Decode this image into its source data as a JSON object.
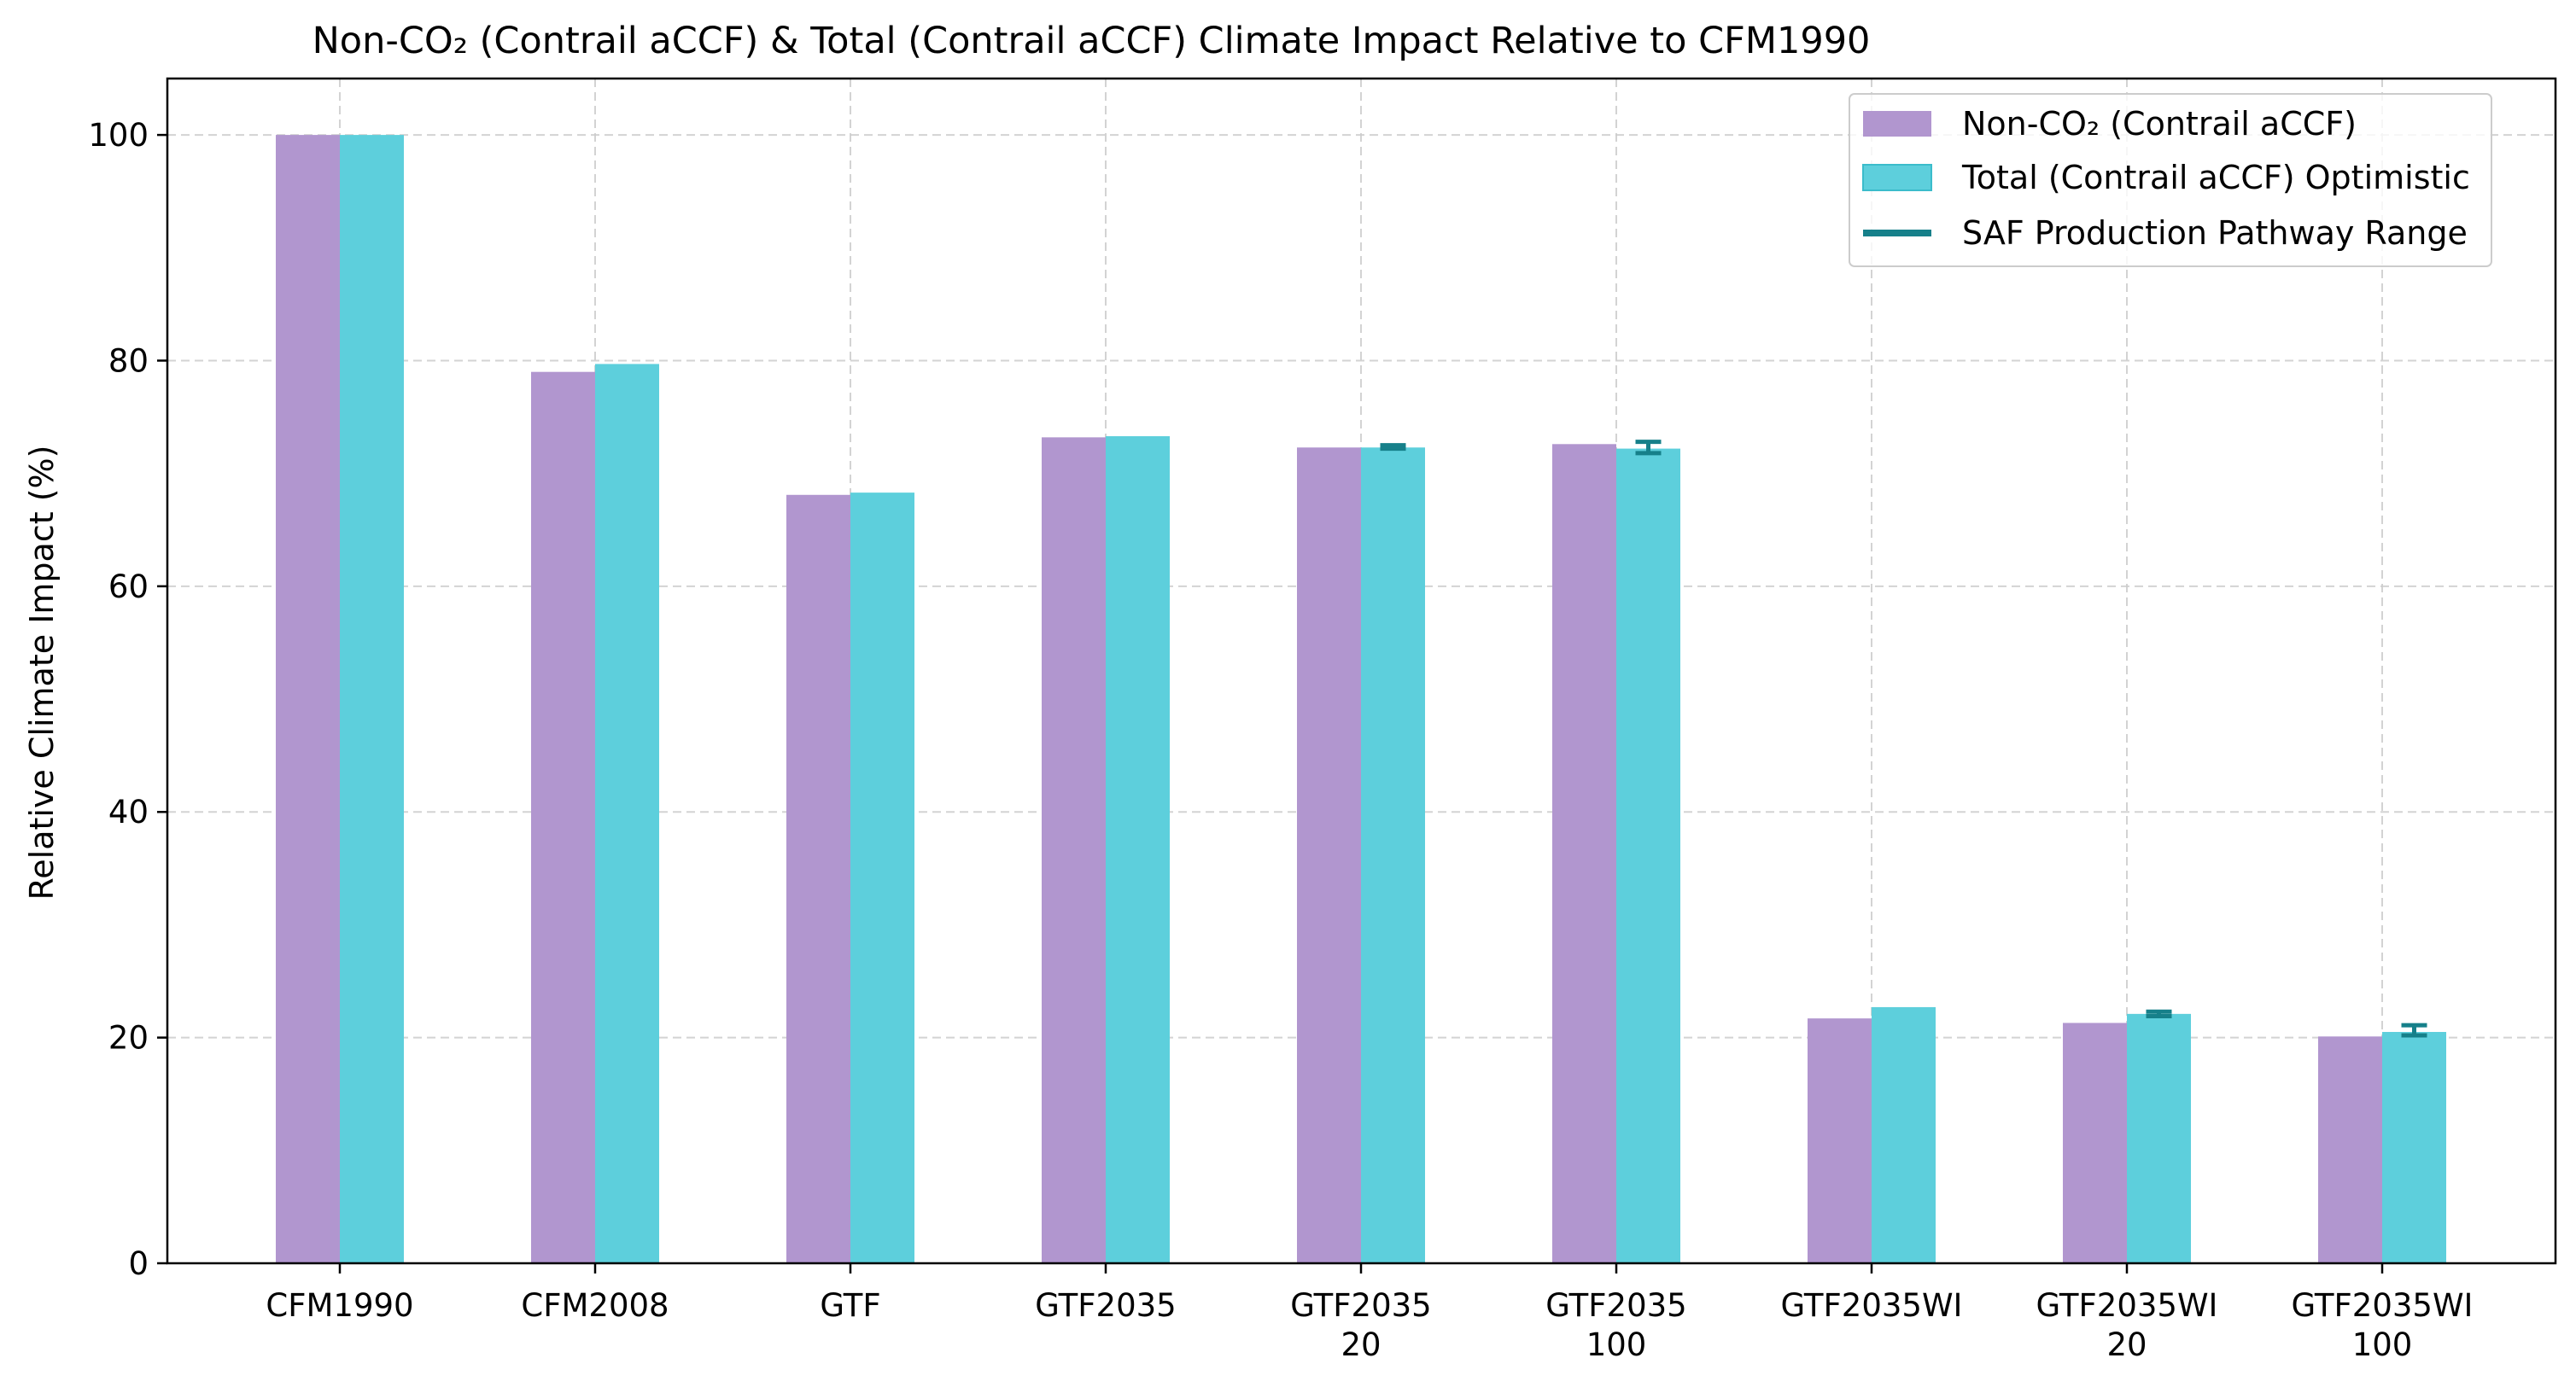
{
  "chart_data": {
    "type": "bar",
    "title": "Non-CO₂ (Contrail aCCF) & Total (Contrail aCCF) Climate Impact Relative to CFM1990",
    "xlabel": "",
    "ylabel": "Relative Climate Impact (%)",
    "ylim": [
      0,
      105
    ],
    "yticks": [
      0,
      20,
      40,
      60,
      80,
      100
    ],
    "grid": true,
    "legend_position": "top-right",
    "categories": [
      [
        "CFM1990"
      ],
      [
        "CFM2008"
      ],
      [
        "GTF"
      ],
      [
        "GTF2035"
      ],
      [
        "GTF2035",
        "20"
      ],
      [
        "GTF2035",
        "100"
      ],
      [
        "GTF2035WI"
      ],
      [
        "GTF2035WI",
        "20"
      ],
      [
        "GTF2035WI",
        "100"
      ]
    ],
    "series": [
      {
        "name": "Non-CO₂ (Contrail aCCF)",
        "color": "#b196cf",
        "values": [
          100.0,
          79.0,
          68.1,
          73.2,
          72.3,
          72.6,
          21.7,
          21.3,
          20.1
        ]
      },
      {
        "name": "Total (Contrail aCCF) Optimistic",
        "color": "#5dcfdc",
        "values": [
          100.0,
          79.7,
          68.3,
          73.3,
          72.3,
          72.2,
          22.7,
          22.1,
          20.5
        ]
      }
    ],
    "range_series": {
      "name": "SAF Production Pathway Range",
      "color": "#16808a",
      "ranges": [
        null,
        null,
        null,
        null,
        [
          72.2,
          72.5
        ],
        [
          71.8,
          72.8
        ],
        null,
        [
          21.9,
          22.3
        ],
        [
          20.2,
          21.1
        ]
      ]
    }
  }
}
